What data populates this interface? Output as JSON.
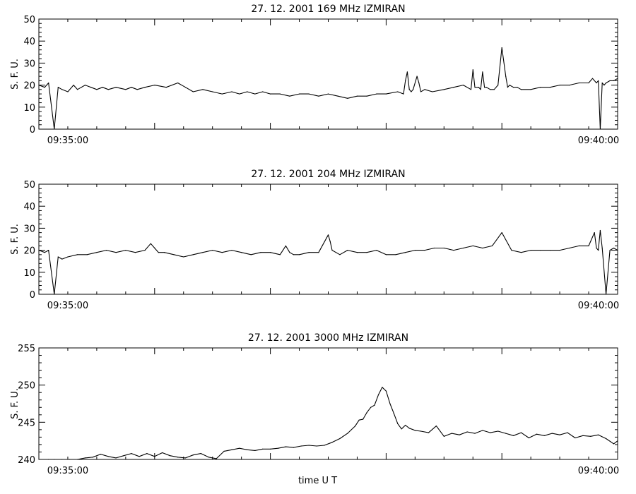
{
  "chart_data": [
    {
      "type": "line",
      "title": "27.  12.  2001    169  MHz    IZMIRAN",
      "ylabel": "S.  F.  U.",
      "ylim": [
        0,
        50
      ],
      "yticks": [
        "0",
        "10",
        "20",
        "30",
        "40",
        "50"
      ],
      "xtick_labels": [
        "09:35:00",
        "09:40:00"
      ],
      "x_range_seconds": [
        0,
        300
      ],
      "series": [
        {
          "x": [
            0,
            3,
            5,
            8,
            10,
            12,
            15,
            18,
            20,
            22,
            24,
            27,
            30,
            33,
            36,
            40,
            45,
            48,
            51,
            55,
            60,
            66,
            72,
            76,
            80,
            85,
            90,
            95,
            100,
            104,
            108,
            112,
            116,
            120,
            125,
            130,
            135,
            140,
            145,
            150,
            155,
            160,
            165,
            170,
            175,
            180,
            186,
            189,
            190,
            191,
            192,
            193,
            194,
            196,
            197,
            198,
            200,
            204,
            210,
            215,
            220,
            224,
            225,
            226,
            228,
            229,
            230,
            231,
            232,
            234,
            236,
            238,
            240,
            242,
            243,
            244,
            246,
            248,
            250,
            255,
            260,
            265,
            270,
            275,
            280,
            285,
            287,
            289,
            290,
            291,
            292,
            293,
            294,
            296,
            298,
            300
          ],
          "y": [
            20,
            19,
            21,
            0,
            19,
            18,
            17,
            20,
            18,
            19,
            20,
            19,
            18,
            19,
            18,
            19,
            18,
            19,
            18,
            19,
            20,
            19,
            21,
            19,
            17,
            18,
            17,
            16,
            17,
            16,
            17,
            16,
            17,
            16,
            16,
            15,
            16,
            16,
            15,
            16,
            15,
            14,
            15,
            15,
            16,
            16,
            17,
            16,
            22,
            26,
            18,
            17,
            18,
            24,
            21,
            17,
            18,
            17,
            18,
            19,
            20,
            18,
            27,
            19,
            19,
            18,
            26,
            19,
            19,
            18,
            18,
            20,
            37,
            24,
            19,
            20,
            19,
            19,
            18,
            18,
            19,
            19,
            20,
            20,
            21,
            21,
            23,
            21,
            22,
            0,
            21,
            20,
            21,
            22,
            22,
            23
          ]
        }
      ]
    },
    {
      "type": "line",
      "title": "27.  12.  2001    204  MHz    IZMIRAN",
      "ylabel": "S.  F.  U.",
      "ylim": [
        0,
        50
      ],
      "yticks": [
        "0",
        "10",
        "20",
        "30",
        "40",
        "50"
      ],
      "xtick_labels": [
        "09:35:00",
        "09:40:00"
      ],
      "x_range_seconds": [
        0,
        300
      ],
      "series": [
        {
          "x": [
            0,
            3,
            5,
            8,
            10,
            12,
            15,
            20,
            25,
            30,
            35,
            40,
            45,
            50,
            55,
            58,
            60,
            62,
            65,
            70,
            75,
            80,
            85,
            90,
            95,
            100,
            105,
            110,
            115,
            120,
            125,
            128,
            130,
            132,
            135,
            140,
            145,
            150,
            151,
            152,
            154,
            156,
            160,
            165,
            170,
            175,
            180,
            185,
            190,
            195,
            200,
            205,
            210,
            215,
            220,
            225,
            230,
            235,
            240,
            245,
            250,
            255,
            260,
            265,
            270,
            275,
            280,
            285,
            288,
            289,
            290,
            291,
            292,
            294,
            296,
            298,
            300
          ],
          "y": [
            20,
            19,
            20,
            0,
            17,
            16,
            17,
            18,
            18,
            19,
            20,
            19,
            20,
            19,
            20,
            23,
            21,
            19,
            19,
            18,
            17,
            18,
            19,
            20,
            19,
            20,
            19,
            18,
            19,
            19,
            18,
            22,
            19,
            18,
            18,
            19,
            19,
            27,
            24,
            20,
            19,
            18,
            20,
            19,
            19,
            20,
            18,
            18,
            19,
            20,
            20,
            21,
            21,
            20,
            21,
            22,
            21,
            22,
            28,
            20,
            19,
            20,
            20,
            20,
            20,
            21,
            22,
            22,
            28,
            21,
            20,
            29,
            21,
            0,
            20,
            21,
            20
          ]
        }
      ]
    },
    {
      "type": "line",
      "title": "27.  12.  2001    3000  MHz    IZMIRAN",
      "ylabel": "S.  F.  U.",
      "xlabel": "time    U  T",
      "ylim": [
        240,
        255
      ],
      "yticks": [
        "240",
        "245",
        "250",
        "255"
      ],
      "xtick_labels": [
        "09:35:00",
        "09:40:00"
      ],
      "x_range_seconds": [
        0,
        300
      ],
      "series": [
        {
          "x": [
            0,
            5,
            8,
            12,
            16,
            20,
            24,
            28,
            32,
            36,
            40,
            44,
            48,
            52,
            56,
            60,
            64,
            68,
            72,
            76,
            80,
            84,
            88,
            92,
            96,
            100,
            104,
            108,
            112,
            116,
            120,
            124,
            128,
            132,
            136,
            140,
            144,
            148,
            152,
            156,
            160,
            164,
            166,
            168,
            170,
            172,
            174,
            176,
            178,
            180,
            182,
            184,
            186,
            188,
            190,
            192,
            195,
            198,
            202,
            206,
            210,
            214,
            218,
            222,
            226,
            230,
            234,
            238,
            242,
            246,
            250,
            254,
            258,
            262,
            266,
            270,
            274,
            278,
            282,
            286,
            290,
            294,
            298,
            300
          ],
          "y": [
            239.6,
            240,
            239.5,
            239.8,
            239.6,
            240,
            240.2,
            240.3,
            240.7,
            240.4,
            240.2,
            240.5,
            240.8,
            240.4,
            240.8,
            240.4,
            240.9,
            240.5,
            240.3,
            240.2,
            240.6,
            240.8,
            240.3,
            240.1,
            241.1,
            241.3,
            241.5,
            241.3,
            241.2,
            241.4,
            241.4,
            241.5,
            241.7,
            241.6,
            241.8,
            241.9,
            241.8,
            241.9,
            242.3,
            242.8,
            243.5,
            244.5,
            245.3,
            245.4,
            246.3,
            247,
            247.3,
            248.7,
            249.7,
            249.2,
            247.5,
            246.2,
            244.8,
            244.1,
            244.6,
            244.2,
            243.9,
            243.8,
            243.6,
            244.5,
            243.1,
            243.5,
            243.3,
            243.7,
            243.5,
            243.9,
            243.6,
            243.8,
            243.5,
            243.2,
            243.6,
            242.9,
            243.4,
            243.2,
            243.5,
            243.3,
            243.6,
            242.9,
            243.2,
            243.1,
            243.3,
            242.8,
            242.1,
            242.5
          ]
        }
      ]
    }
  ]
}
